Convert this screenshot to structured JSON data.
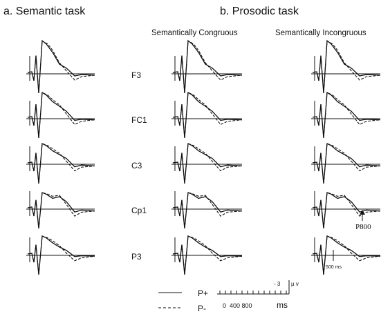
{
  "chart_data": [
    {
      "type": "line",
      "title": "a.  Semantic task",
      "subtitle": "",
      "channels": [
        "F3",
        "FC1",
        "C3",
        "Cp1",
        "P3"
      ],
      "series": [
        {
          "name": "P+",
          "style": "solid"
        },
        {
          "name": "P-",
          "style": "dashed"
        }
      ]
    },
    {
      "type": "line",
      "title": "b.  Prosodic task",
      "subtitle": "Semantically Congruous",
      "channels": [
        "F3",
        "FC1",
        "C3",
        "Cp1",
        "P3"
      ],
      "series": [
        {
          "name": "P+",
          "style": "solid"
        },
        {
          "name": "P-",
          "style": "dashed"
        }
      ]
    },
    {
      "type": "line",
      "title": "",
      "subtitle": "Semantically Incongruous",
      "channels": [
        "F3",
        "FC1",
        "C3",
        "Cp1",
        "P3"
      ],
      "series": [
        {
          "name": "P+",
          "style": "solid"
        },
        {
          "name": "P-",
          "style": "dashed"
        }
      ],
      "annotations": [
        {
          "text": "P800",
          "channel": "Cp1"
        }
      ],
      "time_marker": "500 ms"
    }
  ],
  "labels": {
    "title_a": "a.  Semantic task",
    "title_b": "b.  Prosodic task",
    "sub_congruous": "Semantically Congruous",
    "sub_incongruous": "Semantically Incongruous",
    "channels": [
      "F3",
      "FC1",
      "C3",
      "Cp1",
      "P3"
    ],
    "annotation": "P800",
    "time_marker": "500 ms"
  },
  "legend": {
    "solid_label": "P+",
    "dashed_label": "P-"
  },
  "scale_bar": {
    "amplitude": "- 3",
    "unit": "µ v",
    "ticks": "0  400 800",
    "ms_label": "ms"
  }
}
